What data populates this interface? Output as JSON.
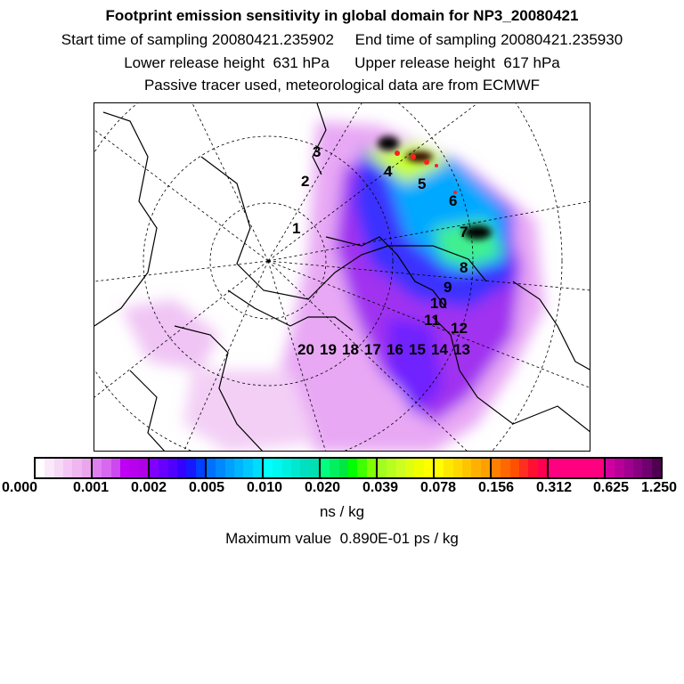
{
  "header": {
    "title": "Footprint emission sensitivity in global domain for NP3_20080421",
    "line2": "Start time of sampling 20080421.235902     End time of sampling 20080421.235930",
    "line3": "Lower release height  631 hPa      Upper release height  617 hPa",
    "line4": "Passive tracer used, meteorological data are from ECMWF"
  },
  "map": {
    "point_labels": [
      "1",
      "2",
      "3",
      "4",
      "5",
      "6",
      "7",
      "8",
      "9",
      "10",
      "11",
      "12",
      "13",
      "14",
      "15",
      "16",
      "17",
      "18",
      "19",
      "20"
    ]
  },
  "colorbar": {
    "tick_labels": [
      "0.000",
      "0.001",
      "0.002",
      "0.005",
      "0.010",
      "0.020",
      "0.039",
      "0.078",
      "0.156",
      "0.312",
      "0.625",
      "1.250"
    ],
    "unit": "ns / kg",
    "palette": [
      [
        "#ffffff",
        "#fbe8fb",
        "#f7d8f7",
        "#f3c6f3",
        "#efb6ef",
        "#eaa6ea"
      ],
      [
        "#e080f0",
        "#d868f0",
        "#cc48f0",
        "#c000f4",
        "#b800ee",
        "#b000e8"
      ],
      [
        "#8000ff",
        "#6800ff",
        "#5000ff",
        "#3400ff",
        "#1818ff",
        "#0040ff"
      ],
      [
        "#0070ff",
        "#0088ff",
        "#00a0ff",
        "#00b4ff",
        "#00c8ff",
        "#00dcff"
      ],
      [
        "#00ffff",
        "#00f8f0",
        "#00f0e0",
        "#00e8d0",
        "#00e0c0",
        "#00e0b0"
      ],
      [
        "#00ff80",
        "#00f060",
        "#00e840",
        "#00ff00",
        "#40ff00",
        "#80ff00"
      ],
      [
        "#a0ff20",
        "#b8ff20",
        "#ccff20",
        "#e0ff10",
        "#f0ff00",
        "#ffff00"
      ],
      [
        "#ffff00",
        "#ffe800",
        "#ffd800",
        "#ffc400",
        "#ffb000",
        "#ffa000"
      ],
      [
        "#ff8000",
        "#ff6800",
        "#ff5000",
        "#ff2e20",
        "#ff1030",
        "#ff0050"
      ],
      [
        "#ff0080",
        "#ff0080",
        "#ff0080",
        "#ff0080",
        "#ff0080",
        "#ff0080"
      ],
      [
        "#d000a0",
        "#b80098",
        "#a00090",
        "#880080",
        "#700070",
        "#500050"
      ]
    ]
  },
  "footer": {
    "max_value": "Maximum value  0.890E-01 ps / kg"
  }
}
